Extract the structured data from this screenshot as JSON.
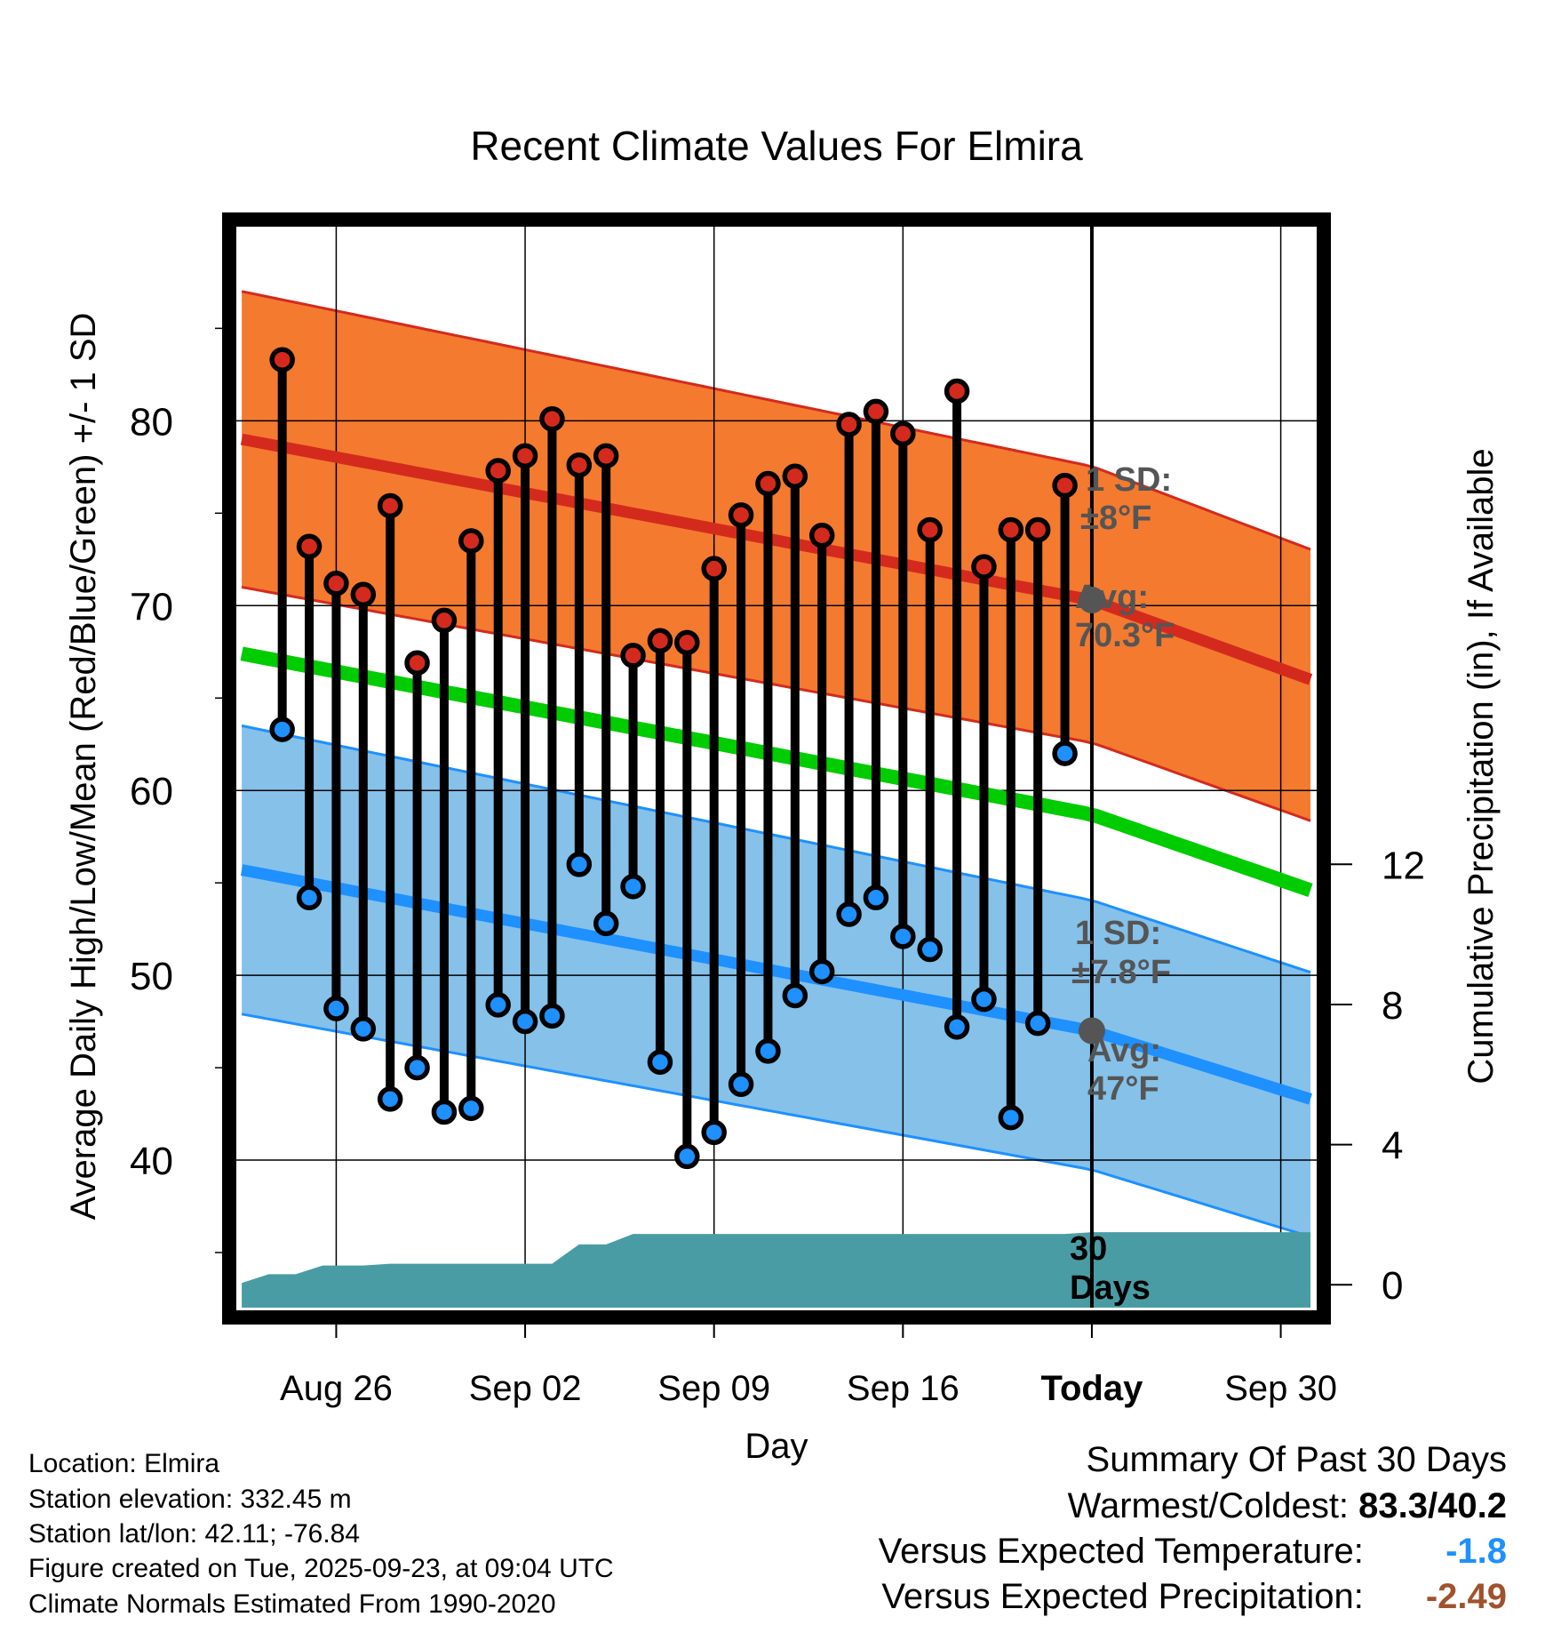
{
  "chart_data": {
    "type": "line",
    "title": "Recent Climate Values For Elmira",
    "xlabel": "Day",
    "ylabel": "Average Daily High/Low/Mean (Red/Blue/Green) +/- 1 SD",
    "y2label": "Cumulative Precipitation (in), If Available",
    "xlim": [
      -0.8,
      39.1
    ],
    "ylim": [
      32.5,
      90.5
    ],
    "y2lim": [
      -0.4,
      30.2
    ],
    "x_ticks": [
      3,
      10,
      17,
      24,
      31,
      38
    ],
    "x_tick_labels": [
      "Aug 26",
      "Sep 02",
      "Sep 09",
      "Sep 16",
      "Today",
      "Sep 30"
    ],
    "y_ticks": [
      40,
      50,
      60,
      70,
      80
    ],
    "y_tick_labels": [
      "40",
      "50",
      "60",
      "70",
      "80"
    ],
    "y2_ticks": [
      0,
      4,
      8,
      12
    ],
    "y2_tick_labels": [
      "0",
      "4",
      "8",
      "12"
    ],
    "grid": true,
    "today_x": 31,
    "days": [
      1,
      2,
      3,
      4,
      5,
      6,
      7,
      8,
      9,
      10,
      11,
      12,
      13,
      14,
      15,
      16,
      17,
      18,
      19,
      20,
      21,
      22,
      23,
      24,
      25,
      26,
      27,
      28,
      29,
      30
    ],
    "highs": [
      83.3,
      73.2,
      71.2,
      70.6,
      75.4,
      66.9,
      69.2,
      73.5,
      77.3,
      78.1,
      80.1,
      77.6,
      78.1,
      67.3,
      68.1,
      68.0,
      72.0,
      74.9,
      76.6,
      77.0,
      73.8,
      79.8,
      80.5,
      79.3,
      74.1,
      81.6,
      72.1,
      74.1,
      74.1,
      76.5
    ],
    "lows": [
      63.3,
      54.2,
      48.2,
      47.1,
      43.3,
      45.0,
      42.6,
      42.8,
      48.4,
      47.5,
      47.8,
      56.0,
      52.8,
      54.8,
      45.3,
      40.2,
      41.5,
      44.1,
      45.9,
      48.9,
      50.2,
      53.3,
      54.2,
      52.1,
      51.4,
      47.2,
      48.7,
      42.3,
      47.4,
      62.0
    ],
    "normals": {
      "x": [
        -0.5,
        31,
        39.1
      ],
      "high_avg": [
        79.0,
        70.3,
        66.0
      ],
      "high_sd": 8,
      "low_avg": [
        55.7,
        47.0,
        43.3
      ],
      "low_sd": 7.8,
      "mean_avg": [
        67.4,
        58.7,
        54.6
      ]
    },
    "precip": {
      "x": [
        -0.5,
        0.5,
        1.5,
        2.5,
        4,
        5,
        9,
        10,
        11,
        12,
        13,
        14,
        30,
        31,
        39.1
      ],
      "values": [
        0.05,
        0.3,
        0.3,
        0.55,
        0.55,
        0.6,
        0.6,
        0.6,
        0.6,
        1.15,
        1.15,
        1.45,
        1.45,
        1.5,
        1.5
      ]
    },
    "annotations": {
      "high_sd_label": "1 SD:",
      "high_sd_value": "±8°F",
      "high_avg_label": "Avg:",
      "high_avg_value": "70.3°F",
      "low_sd_label": "1 SD:",
      "low_sd_value": "±7.8°F",
      "low_avg_label": "Avg:",
      "low_avg_value": "47°F",
      "window_value": "30",
      "window_label": "Days"
    },
    "colors": {
      "high_band": "#f47a2f",
      "high_line": "#d42a1e",
      "low_band": "#85c1e9",
      "low_line": "#1e90ff",
      "mean_line": "#00cc00",
      "precip": "#4a9ca4",
      "today_marker": "#555555"
    }
  },
  "footer": {
    "location": "Location: Elmira",
    "elevation": "Station elevation: 332.45 m",
    "latlon": "Station lat/lon: 42.11; -76.84",
    "created": "Figure created on Tue, 2025-09-23, at 09:04 UTC",
    "normals": "Climate Normals Estimated From 1990-2020"
  },
  "summary": {
    "title": "Summary Of Past 30 Days",
    "warmest_label": "Warmest/Coldest:",
    "warmest_value": "83.3/40.2",
    "temp_label": "Versus Expected Temperature:",
    "temp_value": "-1.8",
    "temp_color": "#1e90ff",
    "precip_label": "Versus Expected Precipitation:",
    "precip_value": "-2.49",
    "precip_color": "#a0522d"
  }
}
